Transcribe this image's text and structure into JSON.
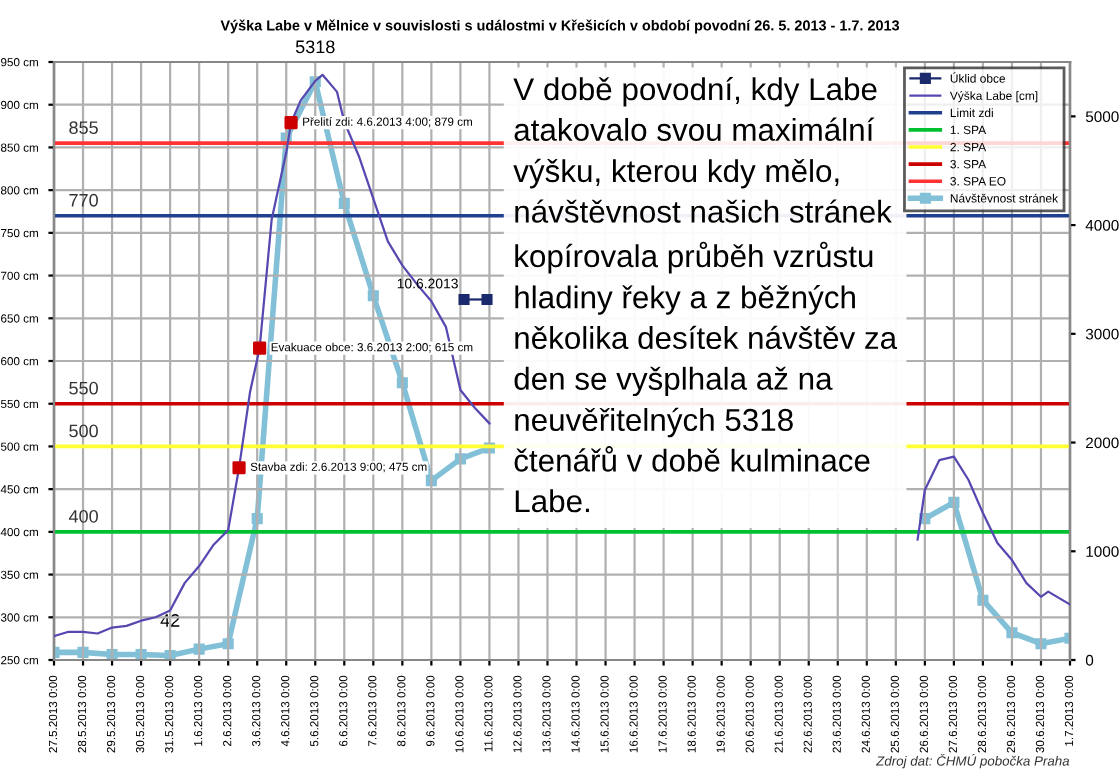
{
  "chart_data": {
    "type": "line",
    "title": "Výška Labe v Mělnice v souvislosti s událostmi v Křešicích v období povodní 26. 5. 2013 - 1.7. 2013",
    "annotations": [
      {
        "text": "V době povodní, kdy Labe\natakovalo svou maximální\nvýšku, kterou kdy mělo,\nnávštěvnost našich stránek\nkopírovala průběh vzrůstu\nhladiny řeky a z běžných\nněkolika desítek návštěv za\nden se vyšplhala až na\nneuvěřitelných 5318\nčtenářů v době kulminace\nLabe."
      },
      {
        "text": "855",
        "x": "2013-05-27T12:00",
        "y": 855
      },
      {
        "text": "770",
        "x": "2013-05-27T12:00",
        "y": 770
      },
      {
        "text": "550",
        "x": "2013-05-27T12:00",
        "y": 550
      },
      {
        "text": "500",
        "x": "2013-05-27T12:00",
        "y": 500
      },
      {
        "text": "400",
        "x": "2013-05-27T12:00",
        "y": 400
      },
      "Zdroj dat: ČHMÚ pobočka Praha"
    ],
    "series": [
      {
        "name": "Úklid obce",
        "color": "#1a2a6c",
        "marker": "square",
        "x": [
          "2013-06-10T03:00",
          "2013-06-10T22:00"
        ],
        "values": [
          672,
          672
        ],
        "value_labels": [
          "10.6.2013",
          null
        ]
      },
      {
        "name": "Výška Labe [cm]",
        "color": "#5548b0",
        "marker": "none",
        "x": [
          "2013-05-27",
          "2013-05-27T12:00",
          "2013-05-28",
          "2013-05-28T12:00",
          "2013-05-29",
          "2013-05-29T12:00",
          "2013-05-30",
          "2013-05-30T12:00",
          "2013-05-31",
          "2013-05-31T12:00",
          "2013-06-01",
          "2013-06-01T12:00",
          "2013-06-02",
          "2013-06-02T09:00",
          "2013-06-02T18:00",
          "2013-06-03T02:00",
          "2013-06-03T12:00",
          "2013-06-04",
          "2013-06-04T04:00",
          "2013-06-04T12:00",
          "2013-06-05",
          "2013-06-05T06:00",
          "2013-06-05T18:00",
          "2013-06-06",
          "2013-06-06T12:00",
          "2013-06-07",
          "2013-06-07T12:00",
          "2013-06-08",
          "2013-06-08T12:00",
          "2013-06-09",
          "2013-06-09T12:00",
          "2013-06-10",
          "2013-06-10T12:00",
          "2013-06-11",
          "2013-06-12",
          "2013-06-25T18:00",
          "2013-06-26",
          "2013-06-26T12:00",
          "2013-06-27",
          "2013-06-27T12:00",
          "2013-06-28",
          "2013-06-28T12:00",
          "2013-06-29",
          "2013-06-29T12:00",
          "2013-06-30",
          "2013-06-30T06:00",
          "2013-07-01"
        ],
        "values": [
          278,
          283,
          283,
          281,
          288,
          290,
          296,
          300,
          308,
          340,
          360,
          385,
          402,
          475,
          563,
          615,
          766,
          844,
          879,
          905,
          928,
          935,
          915,
          880,
          840,
          790,
          740,
          712,
          690,
          670,
          640,
          566,
          545,
          527,
          null,
          391,
          449,
          484,
          488,
          461,
          422,
          387,
          367,
          340,
          324,
          330,
          315
        ]
      },
      {
        "type": "scatter",
        "color": "#cc0000",
        "marker": "square",
        "x": [
          "2013-06-02T09:00",
          "2013-06-03T02:00",
          "2013-06-04T04:00"
        ],
        "values": [
          475,
          615,
          879
        ],
        "value_labels": [
          "Stavba zdi: 2.6.2013 9:00; 475 cm",
          "Evakuace obce: 3.6.2013 2:00; 615 cm",
          "Přelití zdi: 4.6.2013 4:00; 879 cm"
        ]
      },
      {
        "name": "Návštěvnost stránek",
        "axis": "y2",
        "color": "#82c0d8",
        "marker": "square",
        "x": [
          "2013-05-27",
          "2013-05-28",
          "2013-05-29",
          "2013-05-30",
          "2013-05-31",
          "2013-06-01",
          "2013-06-02",
          "2013-06-03",
          "2013-06-04",
          "2013-06-05",
          "2013-06-06",
          "2013-06-07",
          "2013-06-08",
          "2013-06-09",
          "2013-06-10",
          "2013-06-11",
          "2013-06-12",
          "2013-06-26",
          "2013-06-27",
          "2013-06-28",
          "2013-06-29",
          "2013-06-30",
          "2013-07-01"
        ],
        "values": [
          70,
          70,
          50,
          50,
          42,
          100,
          150,
          1300,
          4800,
          5318,
          4200,
          3350,
          2550,
          1650,
          1850,
          1950,
          null,
          1300,
          1450,
          550,
          250,
          150,
          200
        ],
        "value_labels": [
          null,
          null,
          null,
          null,
          "42",
          null,
          null,
          null,
          null,
          "5318",
          null,
          null,
          null,
          null,
          null,
          null,
          null,
          null,
          null,
          null,
          null,
          null,
          null
        ]
      }
    ],
    "ref_lines": [
      {
        "axis": "y",
        "value": 770,
        "label": "Limit zdi",
        "color": "#1f3f8f"
      },
      {
        "axis": "y",
        "value": 400,
        "label": "1. SPA",
        "color": "#00c030"
      },
      {
        "axis": "y",
        "value": 500,
        "label": "2. SPA",
        "color": "#ffff33"
      },
      {
        "axis": "y",
        "value": 550,
        "label": "3. SPA",
        "color": "#cc0000"
      },
      {
        "axis": "y",
        "value": 855,
        "label": "3. SPA EO",
        "color": "#ff3333"
      }
    ],
    "xlim": [
      "2013-05-27",
      "2013-07-01"
    ],
    "xticks": [
      {
        "value": "2013-05-27",
        "label": "27.5.2013 0:00"
      },
      {
        "value": "2013-05-28",
        "label": "28.5.2013 0:00"
      },
      {
        "value": "2013-05-29",
        "label": "29.5.2013 0:00"
      },
      {
        "value": "2013-05-30",
        "label": "30.5.2013 0:00"
      },
      {
        "value": "2013-05-31",
        "label": "31.5.2013 0:00"
      },
      {
        "value": "2013-06-01",
        "label": "1.6.2013 0:00"
      },
      {
        "value": "2013-06-02",
        "label": "2.6.2013 0:00"
      },
      {
        "value": "2013-06-03",
        "label": "3.6.2013 0:00"
      },
      {
        "value": "2013-06-04",
        "label": "4.6.2013 0:00"
      },
      {
        "value": "2013-06-05",
        "label": "5.6.2013 0:00"
      },
      {
        "value": "2013-06-06",
        "label": "6.6.2013 0:00"
      },
      {
        "value": "2013-06-07",
        "label": "7.6.2013 0:00"
      },
      {
        "value": "2013-06-08",
        "label": "8.6.2013 0:00"
      },
      {
        "value": "2013-06-09",
        "label": "9.6.2013 0:00"
      },
      {
        "value": "2013-06-10",
        "label": "10.6.2013 0:00"
      },
      {
        "value": "2013-06-11",
        "label": "11.6.2013 0:00"
      },
      {
        "value": "2013-06-12",
        "label": "12.6.2013 0:00"
      },
      {
        "value": "2013-06-13",
        "label": "13.6.2013 0:00"
      },
      {
        "value": "2013-06-14",
        "label": "14.6.2013 0:00"
      },
      {
        "value": "2013-06-15",
        "label": "15.6.2013 0:00"
      },
      {
        "value": "2013-06-16",
        "label": "16.6.2013 0:00"
      },
      {
        "value": "2013-06-17",
        "label": "17.6.2013 0:00"
      },
      {
        "value": "2013-06-18",
        "label": "18.6.2013 0:00"
      },
      {
        "value": "2013-06-19",
        "label": "19.6.2013 0:00"
      },
      {
        "value": "2013-06-20",
        "label": "20.6.2013 0:00"
      },
      {
        "value": "2013-06-21",
        "label": "21.6.2013 0:00"
      },
      {
        "value": "2013-06-22",
        "label": "22.6.2013 0:00"
      },
      {
        "value": "2013-06-23",
        "label": "23.6.2013 0:00"
      },
      {
        "value": "2013-06-24",
        "label": "24.6.2013 0:00"
      },
      {
        "value": "2013-06-25",
        "label": "25.6.2013 0:00"
      },
      {
        "value": "2013-06-26",
        "label": "26.6.2013 0:00"
      },
      {
        "value": "2013-06-27",
        "label": "27.6.2013 0:00"
      },
      {
        "value": "2013-06-28",
        "label": "28.6.2013 0:00"
      },
      {
        "value": "2013-06-29",
        "label": "29.6.2013 0:00"
      },
      {
        "value": "2013-06-30",
        "label": "30.6.2013 0:00"
      },
      {
        "value": "2013-07-01",
        "label": "1.7.2013 0:00"
      }
    ],
    "ylim": [
      250,
      950
    ],
    "yticks": [
      {
        "value": 250,
        "label": "250 cm"
      },
      {
        "value": 300,
        "label": "300 cm"
      },
      {
        "value": 350,
        "label": "350 cm"
      },
      {
        "value": 400,
        "label": "400 cm"
      },
      {
        "value": 450,
        "label": "450 cm"
      },
      {
        "value": 500,
        "label": "500 cm"
      },
      {
        "value": 550,
        "label": "550 cm"
      },
      {
        "value": 600,
        "label": "600 cm"
      },
      {
        "value": 650,
        "label": "650 cm"
      },
      {
        "value": 700,
        "label": "700 cm"
      },
      {
        "value": 750,
        "label": "750 cm"
      },
      {
        "value": 800,
        "label": "800 cm"
      },
      {
        "value": 850,
        "label": "850 cm"
      },
      {
        "value": 900,
        "label": "900 cm"
      },
      {
        "value": 950,
        "label": "950 cm"
      }
    ],
    "y2lim": [
      0,
      5500
    ],
    "y2ticks": [
      0,
      1000,
      2000,
      3000,
      4000,
      5000
    ],
    "grid": true,
    "legend": "top right"
  }
}
